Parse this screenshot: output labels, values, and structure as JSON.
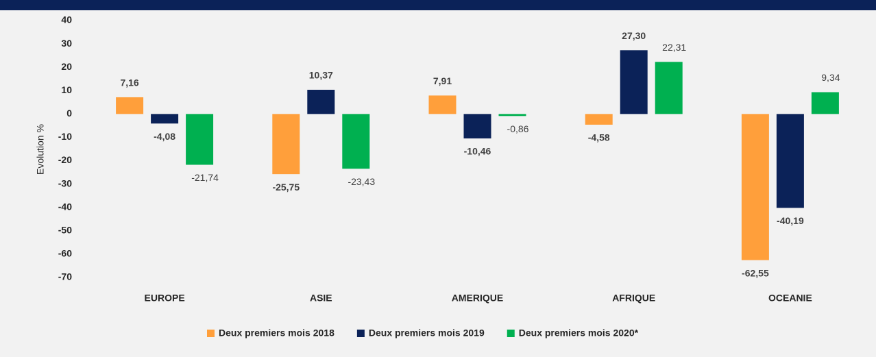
{
  "chart_data": {
    "type": "bar",
    "y_label": "Evolution %",
    "categories": [
      "EUROPE",
      "ASIE",
      "AMERIQUE",
      "AFRIQUE",
      "OCEANIE"
    ],
    "series": [
      {
        "name": "Deux premiers mois 2018",
        "color": "#ff9f3b",
        "values": [
          7.16,
          -25.75,
          7.91,
          -4.58,
          -62.55
        ],
        "value_labels": [
          "7,16",
          "-25,75",
          "7,91",
          "-4,58",
          "-62,55"
        ]
      },
      {
        "name": "Deux premiers mois 2019",
        "color": "#0b2258",
        "values": [
          -4.08,
          10.37,
          -10.46,
          27.3,
          -40.19
        ],
        "value_labels": [
          "-4,08",
          "10,37",
          "-10,46",
          "27,30",
          "-40,19"
        ]
      },
      {
        "name": "Deux premiers mois 2020*",
        "color": "#00b050",
        "values": [
          -21.74,
          -23.43,
          -0.86,
          22.31,
          9.34
        ],
        "value_labels": [
          "-21,74",
          "-23,43",
          "-0,86",
          "22,31",
          "9,34"
        ]
      }
    ],
    "ylim": [
      -70,
      40
    ],
    "yticks": [
      40,
      30,
      20,
      10,
      0,
      -10,
      -20,
      -30,
      -40,
      -50,
      -60,
      -70
    ],
    "grid": false,
    "legend": "bottom"
  }
}
